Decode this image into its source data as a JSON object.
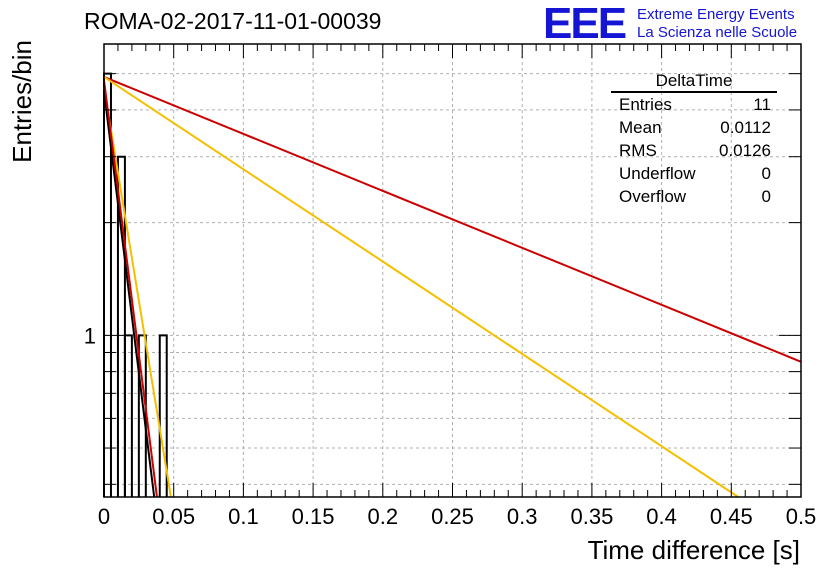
{
  "title": "ROMA-02-2017-11-01-00039",
  "logo": {
    "mark": "EEE",
    "line1": "Extreme Energy Events",
    "line2": "La Scienza nelle Scuole",
    "color": "#1515d4"
  },
  "stats_box": {
    "name": "DeltaTime",
    "rows": [
      {
        "label": "Entries",
        "value": "11"
      },
      {
        "label": "Mean",
        "value": "0.0112"
      },
      {
        "label": "RMS",
        "value": "0.0126"
      },
      {
        "label": "Underflow",
        "value": "0"
      },
      {
        "label": "Overflow",
        "value": "0"
      }
    ]
  },
  "chart_data": {
    "type": "bar",
    "subtype": "histogram",
    "xlabel": "Time difference [s]",
    "ylabel": "Entries/bin",
    "xlim": [
      0,
      0.5
    ],
    "ylim": [
      0.37,
      6.0
    ],
    "yscale": "log",
    "grid": true,
    "x_ticks": [
      "0",
      "0.05",
      "0.1",
      "0.15",
      "0.2",
      "0.25",
      "0.3",
      "0.35",
      "0.4",
      "0.45",
      "0.5"
    ],
    "x_tick_values": [
      0,
      0.05,
      0.1,
      0.15,
      0.2,
      0.25,
      0.3,
      0.35,
      0.4,
      0.45,
      0.5
    ],
    "y_ticks": [
      {
        "value": 1,
        "label": "1"
      }
    ],
    "bin_width": 0.005,
    "bins": [
      {
        "x0": 0.0,
        "count": 5
      },
      {
        "x0": 0.01,
        "count": 3
      },
      {
        "x0": 0.015,
        "count": 1
      },
      {
        "x0": 0.025,
        "count": 1
      },
      {
        "x0": 0.04,
        "count": 1
      }
    ],
    "fits": [
      {
        "color": "#cc0000",
        "y0": 4.9,
        "y_end": 0.85,
        "x_end": 0.5
      },
      {
        "color": "#f5bf00",
        "y0": 4.9,
        "y_end": 0.37,
        "x_end": 0.455
      },
      {
        "color": "#f5bf00",
        "y0": 4.6,
        "y_end": 0.37,
        "x_end": 0.048
      },
      {
        "color": "#000000",
        "y0": 4.5,
        "y_end": 0.37,
        "x_end": 0.036
      },
      {
        "color": "#cc0000",
        "y0": 4.8,
        "y_end": 0.37,
        "x_end": 0.038
      }
    ],
    "grid_color": "#b0b0b0",
    "line_color": "#000000"
  }
}
